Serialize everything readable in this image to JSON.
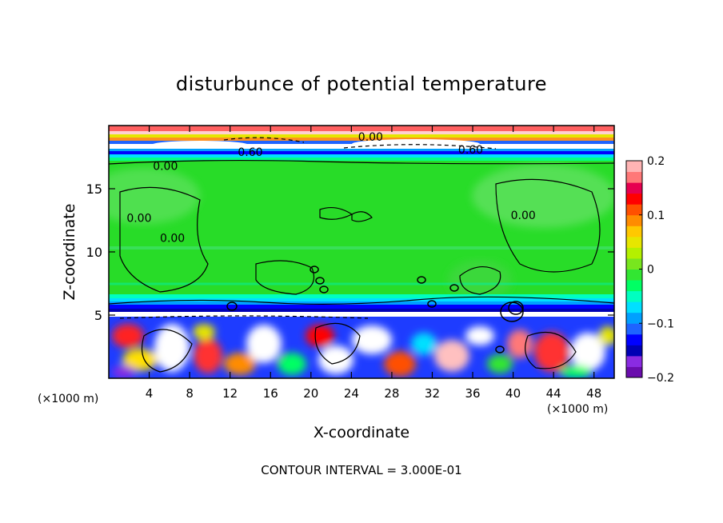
{
  "chart_data": {
    "type": "heatmap",
    "title": "disturbunce of potential temperature",
    "xlabel": "X-coordinate",
    "ylabel": "Z-coordinate",
    "x_unit": "(×1000 m)",
    "z_unit": "(×1000 m)",
    "xlim": [
      0,
      50
    ],
    "ylim": [
      0,
      20
    ],
    "x_ticks": [
      4,
      8,
      12,
      16,
      20,
      24,
      28,
      32,
      36,
      40,
      44,
      48
    ],
    "y_ticks": [
      5,
      10,
      15
    ],
    "colorbar": {
      "range": [
        -0.2,
        0.2
      ],
      "tick_labels": [
        "0.2",
        "0.1",
        "0",
        "−0.1",
        "−0.2"
      ],
      "tick_values": [
        0.2,
        0.1,
        0,
        -0.1,
        -0.2
      ],
      "colors": [
        "#6a0dad",
        "#8a2be2",
        "#0000b4",
        "#0000ff",
        "#1e64ff",
        "#00a0ff",
        "#00e0ff",
        "#00ffc0",
        "#00ff64",
        "#32e632",
        "#78e61e",
        "#b4f000",
        "#e6e600",
        "#ffc800",
        "#ff8c00",
        "#ff5000",
        "#ff0000",
        "#e60050",
        "#ff7878",
        "#ffb4b4"
      ]
    },
    "contour_labels": [
      {
        "text": "0.00",
        "x": 25.9,
        "z": 19.1
      },
      {
        "text": "0.60",
        "x": 14.0,
        "z": 17.9
      },
      {
        "text": "0.60",
        "x": 35.8,
        "z": 18.1
      },
      {
        "text": "0.00",
        "x": 5.6,
        "z": 16.8
      },
      {
        "text": "0.00",
        "x": 3.0,
        "z": 12.7
      },
      {
        "text": "0.00",
        "x": 41.0,
        "z": 12.9
      },
      {
        "text": "0.00",
        "x": 6.3,
        "z": 11.1
      }
    ],
    "contour_interval_text": "CONTOUR INTERVAL = 3.000E-01"
  }
}
